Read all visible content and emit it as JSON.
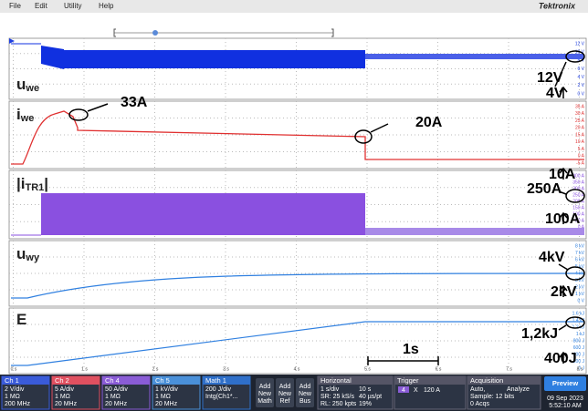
{
  "menu": [
    "File",
    "Edit",
    "Utility",
    "Help"
  ],
  "brand": "Tektronix",
  "panels": [
    {
      "label": {
        "main": "u",
        "sub": "we"
      },
      "annotations": [
        "12V",
        "4V"
      ],
      "scale": [
        "12 V",
        "10 V",
        "8 V",
        "6 V",
        "4 V",
        "2 V",
        "0 V"
      ]
    },
    {
      "label": {
        "main": "i",
        "sub": "we"
      },
      "annotations": [
        "33A",
        "20A",
        "10A"
      ],
      "scale": [
        "35 A",
        "30 A",
        "25 A",
        "20 A",
        "15 A",
        "10 A",
        "5 A",
        "0 A",
        "-5 A"
      ]
    },
    {
      "label": {
        "main": "|i",
        "sub": "TR1",
        "end": "|"
      },
      "annotations": [
        "250A",
        "100A"
      ],
      "scale": [
        "400 A",
        "350 A",
        "300 A",
        "250 A",
        "200 A",
        "150 A",
        "100 A",
        "50 A",
        "0 A",
        "-50 A"
      ]
    },
    {
      "label": {
        "main": "u",
        "sub": "wy"
      },
      "annotations": [
        "4kV",
        "2kV"
      ],
      "scale": [
        "8 kV",
        "7 kV",
        "6 kV",
        "5 kV",
        "4 kV",
        "3 kV",
        "2 kV",
        "1 kV",
        "0 V"
      ]
    },
    {
      "label": {
        "main": "E"
      },
      "annotations": [
        "1,2kJ",
        "400J",
        "1s"
      ],
      "scale": [
        "1.6 kJ",
        "1.4 kJ",
        "1.2 kJ",
        "1 kJ",
        "800 J",
        "600 J",
        "400 J",
        "200 J",
        "0 J"
      ]
    }
  ],
  "time_labels": [
    "0 s",
    "1 s",
    "2 s",
    "3 s",
    "4 s",
    "5 s",
    "6 s",
    "7 s",
    "8 s"
  ],
  "status": {
    "channels": [
      {
        "name": "Ch 1",
        "lines": [
          "2 V/div",
          "1 MΩ",
          "200 MHz"
        ]
      },
      {
        "name": "Ch 2",
        "lines": [
          "5 A/div",
          "1 MΩ",
          "20 MHz"
        ]
      },
      {
        "name": "Ch 4",
        "lines": [
          "50 A/div",
          "1 MΩ",
          "20 MHz"
        ]
      },
      {
        "name": "Ch 5",
        "lines": [
          "1 kV/div",
          "1 MΩ",
          "20 MHz"
        ]
      },
      {
        "name": "Math 1",
        "lines": [
          "200 J/div",
          "Intg(Ch1*..."
        ]
      }
    ],
    "add_buttons": [
      [
        "Add",
        "New",
        "Math"
      ],
      [
        "Add",
        "New",
        "Ref"
      ],
      [
        "Add",
        "New",
        "Bus"
      ]
    ],
    "horizontal": {
      "title": "Horizontal",
      "lines": [
        "1 s/div",
        "10 s",
        "SR: 25 kS/s",
        "40 µs/pt",
        "RL: 250 kpts",
        "19%"
      ]
    },
    "trigger": {
      "title": "Trigger",
      "source": "4",
      "slope": "X",
      "level": "120 A"
    },
    "acquisition": {
      "title": "Acquisition",
      "lines": [
        "Auto,",
        "Analyze",
        "Sample: 12 bits",
        "0 Acqs"
      ]
    },
    "preview": "Preview",
    "date": "09 Sep 2023",
    "time": "5:52:10 AM"
  }
}
